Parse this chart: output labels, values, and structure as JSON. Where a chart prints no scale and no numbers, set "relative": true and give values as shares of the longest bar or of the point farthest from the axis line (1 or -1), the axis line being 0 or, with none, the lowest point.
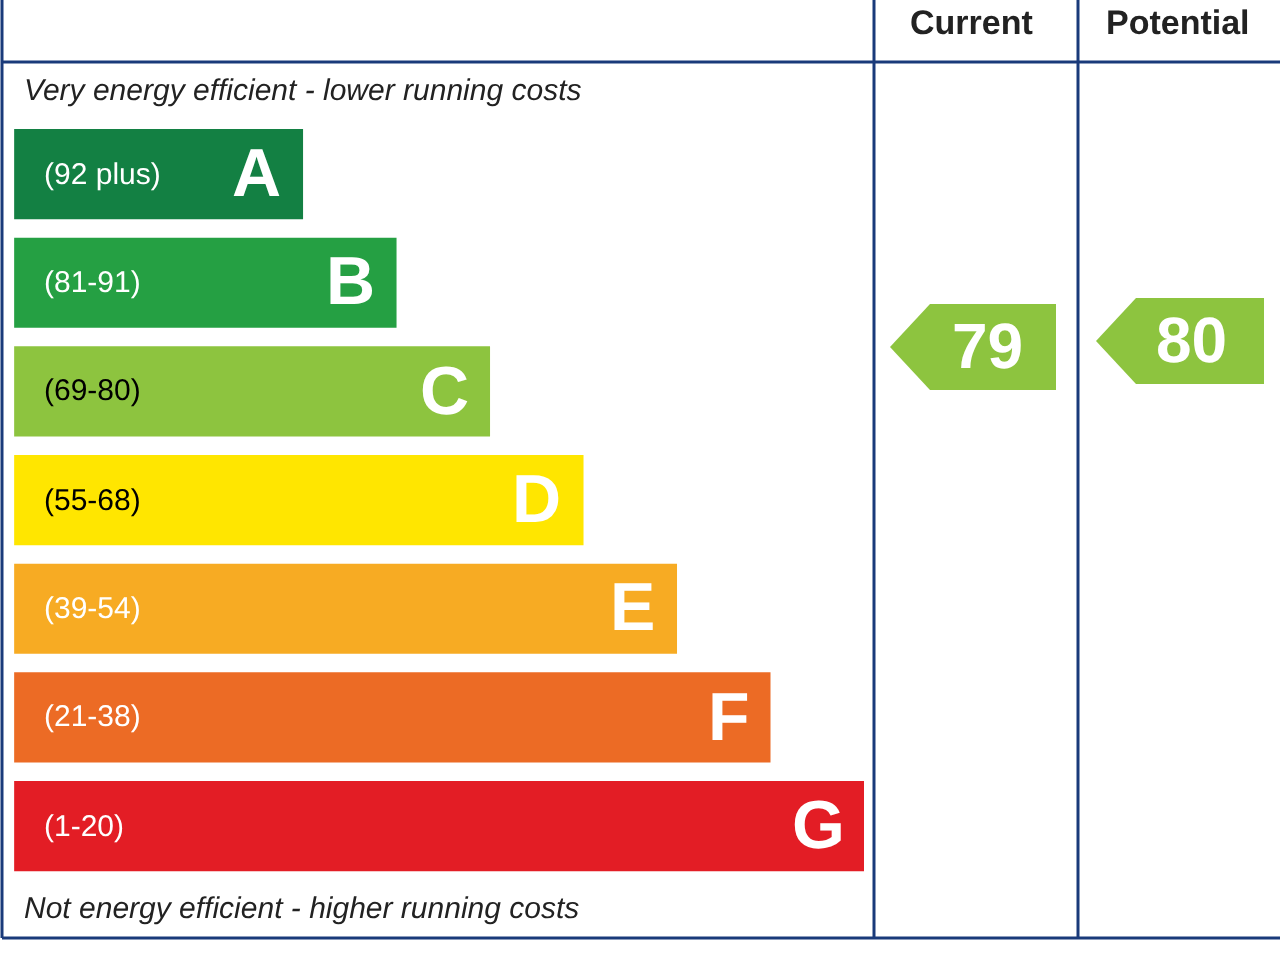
{
  "chart_data": {
    "type": "bar",
    "orientation": "horizontal",
    "relative": true,
    "tick_labels": false,
    "grid": false,
    "legend": false,
    "categories": [
      "(92 plus) A",
      "(81-91) B",
      "(69-80) C",
      "(55-68) D",
      "(39-54) E",
      "(21-38) F",
      "(1-20) G"
    ],
    "values": [
      0.34,
      0.45,
      0.56,
      0.67,
      0.78,
      0.89,
      1
    ],
    "colors": [
      "#138043",
      "#25a043",
      "#8dc43f",
      "#ffe600",
      "#f7ab23",
      "#ec6b25",
      "#e31d25"
    ],
    "annotations": [
      "Very energy efficient - lower running costs",
      "Not energy efficient - higher running costs",
      "Current",
      "Potential",
      "79",
      "80"
    ]
  }
}
